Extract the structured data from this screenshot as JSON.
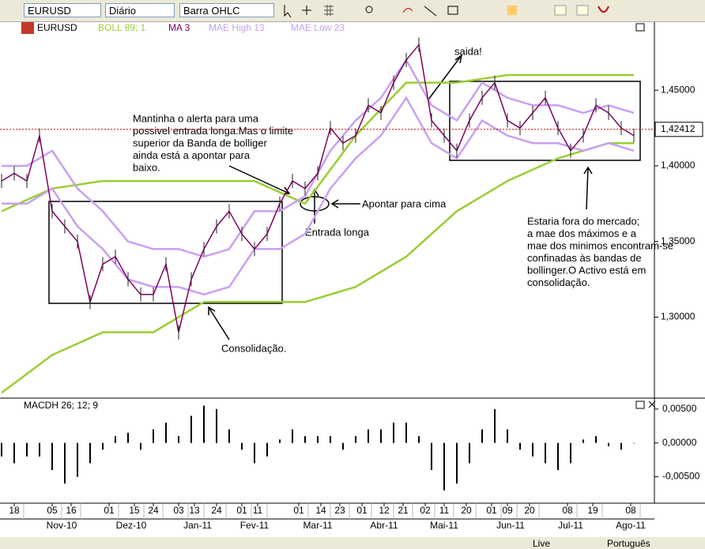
{
  "toolbar": {
    "symbol": "EURUSD",
    "period": "Diário",
    "chart_style": "Barra OHLC"
  },
  "chart_data": [
    {
      "type": "line",
      "legend": [
        "EURUSD",
        "BOLL 89; 1",
        "MA 3",
        "MAE High  13",
        "MAE Low  23"
      ],
      "xlim": [
        -0.5,
        206.5
      ],
      "xticks": [
        {
          "value": 4,
          "label": "18"
        },
        {
          "value": 16,
          "label": "05"
        },
        {
          "value": 22,
          "label": "16"
        },
        {
          "value": 34,
          "label": "01"
        },
        {
          "value": 42,
          "label": "15"
        },
        {
          "value": 48,
          "label": "24"
        },
        {
          "value": 56,
          "label": "03"
        },
        {
          "value": 61,
          "label": "13"
        },
        {
          "value": 68,
          "label": "24"
        },
        {
          "value": 76,
          "label": "01"
        },
        {
          "value": 81,
          "label": "11"
        },
        {
          "value": 94,
          "label": "01"
        },
        {
          "value": 101,
          "label": "14"
        },
        {
          "value": 107,
          "label": "23"
        },
        {
          "value": 114,
          "label": "01"
        },
        {
          "value": 121,
          "label": "12"
        },
        {
          "value": 127,
          "label": "21"
        },
        {
          "value": 134,
          "label": "02"
        },
        {
          "value": 140,
          "label": "11"
        },
        {
          "value": 147,
          "label": "20"
        },
        {
          "value": 155,
          "label": "01"
        },
        {
          "value": 160,
          "label": "09"
        },
        {
          "value": 167,
          "label": "20"
        },
        {
          "value": 179,
          "label": "08"
        },
        {
          "value": 187,
          "label": "19"
        },
        {
          "value": 199,
          "label": "08"
        }
      ],
      "month_ticks": [
        {
          "value": 19,
          "label": "Nov-10"
        },
        {
          "value": 41,
          "label": "Dez-10"
        },
        {
          "value": 62,
          "label": "Jan-11"
        },
        {
          "value": 80,
          "label": "Fev-11"
        },
        {
          "value": 100,
          "label": "Mar-11"
        },
        {
          "value": 121,
          "label": "Abr-11"
        },
        {
          "value": 140,
          "label": "Mai-11"
        },
        {
          "value": 161,
          "label": "Jun-11"
        },
        {
          "value": 180,
          "label": "Jul-11"
        },
        {
          "value": 199,
          "label": "Ago-11"
        }
      ],
      "ylim": [
        1.247,
        1.495
      ],
      "yticks": [
        {
          "value": 1.45,
          "label": "1,45000"
        },
        {
          "value": 1.4,
          "label": "1,40000"
        },
        {
          "value": 1.35,
          "label": "1,35000"
        },
        {
          "value": 1.3,
          "label": "1,30000"
        }
      ],
      "last_price": {
        "value": 1.42412,
        "label": "1,42412",
        "color": "#d00000"
      },
      "series": [
        {
          "name": "BOLL upper",
          "color": "#9acd32",
          "x": [
            0,
            16,
            32,
            48,
            64,
            80,
            96,
            112,
            128,
            144,
            160,
            176,
            192,
            200
          ],
          "values": [
            1.37,
            1.385,
            1.39,
            1.39,
            1.39,
            1.39,
            1.375,
            1.42,
            1.455,
            1.455,
            1.46,
            1.46,
            1.46,
            1.46
          ]
        },
        {
          "name": "BOLL lower",
          "color": "#9acd32",
          "x": [
            0,
            16,
            32,
            48,
            64,
            80,
            96,
            112,
            128,
            144,
            160,
            176,
            192,
            200
          ],
          "values": [
            1.25,
            1.275,
            1.29,
            1.29,
            1.31,
            1.31,
            1.31,
            1.32,
            1.34,
            1.37,
            1.39,
            1.405,
            1.415,
            1.415
          ]
        },
        {
          "name": "MAE High",
          "color": "#c8a0f0",
          "x": [
            0,
            8,
            16,
            24,
            32,
            40,
            48,
            56,
            64,
            72,
            80,
            88,
            96,
            104,
            112,
            120,
            128,
            136,
            144,
            152,
            160,
            168,
            176,
            184,
            192,
            200
          ],
          "values": [
            1.4,
            1.4,
            1.41,
            1.385,
            1.37,
            1.35,
            1.345,
            1.345,
            1.34,
            1.345,
            1.37,
            1.37,
            1.38,
            1.41,
            1.43,
            1.445,
            1.47,
            1.44,
            1.43,
            1.455,
            1.445,
            1.44,
            1.44,
            1.435,
            1.44,
            1.435
          ]
        },
        {
          "name": "MAE Low",
          "color": "#c8a0f0",
          "x": [
            0,
            8,
            16,
            24,
            32,
            40,
            48,
            56,
            64,
            72,
            80,
            88,
            96,
            104,
            112,
            120,
            128,
            136,
            144,
            152,
            160,
            168,
            176,
            184,
            192,
            200
          ],
          "values": [
            1.375,
            1.375,
            1.385,
            1.36,
            1.345,
            1.325,
            1.32,
            1.32,
            1.315,
            1.32,
            1.345,
            1.345,
            1.355,
            1.385,
            1.405,
            1.42,
            1.445,
            1.415,
            1.405,
            1.43,
            1.42,
            1.415,
            1.415,
            1.41,
            1.415,
            1.41
          ]
        },
        {
          "name": "MA 3",
          "color": "#800060",
          "x": [
            0,
            4,
            8,
            12,
            16,
            20,
            24,
            28,
            32,
            36,
            40,
            44,
            48,
            52,
            56,
            60,
            64,
            68,
            72,
            76,
            80,
            84,
            88,
            92,
            96,
            100,
            104,
            108,
            112,
            116,
            120,
            124,
            128,
            132,
            136,
            140,
            144,
            148,
            152,
            156,
            160,
            164,
            168,
            172,
            176,
            180,
            184,
            188,
            192,
            196,
            200
          ],
          "values": [
            1.39,
            1.395,
            1.39,
            1.42,
            1.37,
            1.36,
            1.35,
            1.31,
            1.335,
            1.34,
            1.325,
            1.315,
            1.315,
            1.335,
            1.29,
            1.325,
            1.345,
            1.36,
            1.37,
            1.355,
            1.345,
            1.355,
            1.375,
            1.39,
            1.385,
            1.395,
            1.425,
            1.415,
            1.42,
            1.44,
            1.435,
            1.455,
            1.47,
            1.48,
            1.43,
            1.42,
            1.41,
            1.43,
            1.445,
            1.455,
            1.43,
            1.425,
            1.435,
            1.445,
            1.425,
            1.41,
            1.42,
            1.44,
            1.435,
            1.425,
            1.42
          ]
        }
      ],
      "annotations": {
        "exit": "saida!",
        "alert": [
          "Mantinha o alerta para uma",
          "possivel entrada longa.Mas o limite",
          "superior da Banda de bolliger",
          "ainda está a apontar para",
          "baixo."
        ],
        "up": "Apontar para cima",
        "entry": "Entrada longa",
        "consolidation": "Consolidação.",
        "out": [
          "Estaria fora do mercado;",
          "a mae dos máximos e a",
          "mae dos minimos encontram-se",
          "confinadas às bandas de",
          "bollinger.O Activo está em",
          "consolidação."
        ]
      }
    },
    {
      "type": "bar",
      "title": "MACDH 26; 12; 9",
      "color": "#000000",
      "ylim": [
        -0.0089,
        0.0065
      ],
      "yticks": [
        {
          "value": 0.005,
          "label": "0,00500"
        },
        {
          "value": 0,
          "label": "0,00000"
        },
        {
          "value": -0.005,
          "label": "-0,00500"
        }
      ],
      "x": [
        0,
        4,
        8,
        12,
        16,
        20,
        24,
        28,
        32,
        36,
        40,
        44,
        48,
        52,
        56,
        60,
        64,
        68,
        72,
        76,
        80,
        84,
        88,
        92,
        96,
        100,
        104,
        108,
        112,
        116,
        120,
        124,
        128,
        132,
        136,
        140,
        144,
        148,
        152,
        156,
        160,
        164,
        168,
        172,
        176,
        180,
        184,
        188,
        192,
        196,
        200
      ],
      "values": [
        -0.002,
        -0.003,
        -0.002,
        -0.002,
        -0.004,
        -0.006,
        -0.005,
        -0.003,
        -0.001,
        0.001,
        0.0015,
        -0.001,
        0.002,
        0.003,
        0.001,
        0.004,
        0.0055,
        0.005,
        0.002,
        -0.001,
        -0.003,
        -0.002,
        0.0005,
        0.002,
        0.001,
        0.001,
        0.001,
        -0.001,
        0.001,
        0.002,
        0.002,
        0.003,
        0.003,
        0.001,
        -0.004,
        -0.007,
        -0.006,
        -0.003,
        0.002,
        0.005,
        0.002,
        -0.001,
        -0.002,
        -0.003,
        -0.004,
        -0.003,
        0.0005,
        0.001,
        -0.0005,
        -0.001,
        0
      ]
    }
  ],
  "status": {
    "mode": "Live",
    "language": "Português"
  }
}
